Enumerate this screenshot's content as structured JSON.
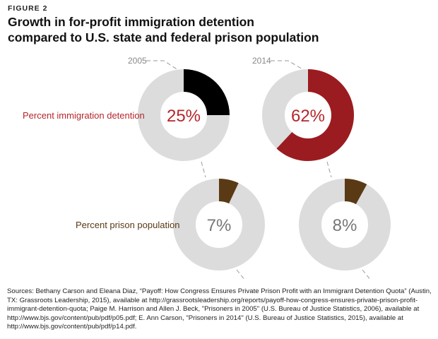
{
  "figure": {
    "label": "FIGURE 2",
    "title_line1": "Growth in for-profit immigration detention",
    "title_line2": "compared to U.S. state and federal prison population"
  },
  "colors": {
    "track": "#dcdcdc",
    "immigration_2005": "#000000",
    "immigration_2014": "#9b1c20",
    "prison": "#5a3a14",
    "immigration_label": "#b5262b",
    "prison_label": "#5a3a14",
    "center_immigration": "#b5262b",
    "center_prison": "#777777",
    "leader": "#999999"
  },
  "chart_data": {
    "type": "pie",
    "title": "Growth in for-profit immigration detention compared to U.S. state and federal prison population",
    "years": [
      "2005",
      "2014"
    ],
    "series": [
      {
        "name": "Percent immigration detention",
        "values": [
          25,
          62
        ],
        "labels": [
          "25%",
          "62%"
        ]
      },
      {
        "name": "Percent prison population",
        "values": [
          7,
          8
        ],
        "labels": [
          "7%",
          "8%"
        ]
      }
    ]
  },
  "sources": "Sources: Bethany Carson and Eleana Diaz, “Payoff: How Congress Ensures Private Prison Profit with an Immigrant Detention Quota” (Austin, TX: Grassroots Leadership, 2015), available at http://grassrootsleadership.org/reports/payoff-how-congress-ensures-private-prison-profit-immigrant-detention-quota; Paige M. Harrison and Allen J. Beck, \"Prisoners in 2005\" (U.S. Bureau of Justice Statistics, 2006), available at http://www.bjs.gov/content/pub/pdf/p05.pdf; E. Ann Carson, \"Prisoners in 2014\" (U.S. Bureau of Justice Statistics, 2015), available at http://www.bjs.gov/content/pub/pdf/p14.pdf."
}
